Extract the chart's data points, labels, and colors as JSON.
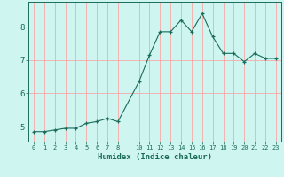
{
  "x": [
    0,
    1,
    2,
    3,
    4,
    5,
    6,
    7,
    8,
    10,
    11,
    12,
    13,
    14,
    15,
    16,
    17,
    18,
    19,
    20,
    21,
    22,
    23
  ],
  "y": [
    4.85,
    4.85,
    4.9,
    4.95,
    4.95,
    5.1,
    5.15,
    5.25,
    5.15,
    6.35,
    7.15,
    7.85,
    7.85,
    8.2,
    7.85,
    8.4,
    7.7,
    7.2,
    7.2,
    6.95,
    7.2,
    7.05,
    7.05
  ],
  "xticks": [
    0,
    1,
    2,
    3,
    4,
    5,
    6,
    7,
    8,
    10,
    11,
    12,
    13,
    14,
    15,
    16,
    17,
    18,
    19,
    20,
    21,
    22,
    23
  ],
  "yticks": [
    5,
    6,
    7,
    8
  ],
  "ylim": [
    4.55,
    8.75
  ],
  "xlim": [
    -0.5,
    23.5
  ],
  "xlabel": "Humidex (Indice chaleur)",
  "line_color": "#1a6b5a",
  "marker": "+",
  "marker_color": "#1a6b5a",
  "bg_color": "#cef5f0",
  "grid_color": "#ff9999",
  "axis_color": "#1a6b5a",
  "tick_label_color": "#1a6b5a",
  "xlabel_color": "#1a6b5a"
}
